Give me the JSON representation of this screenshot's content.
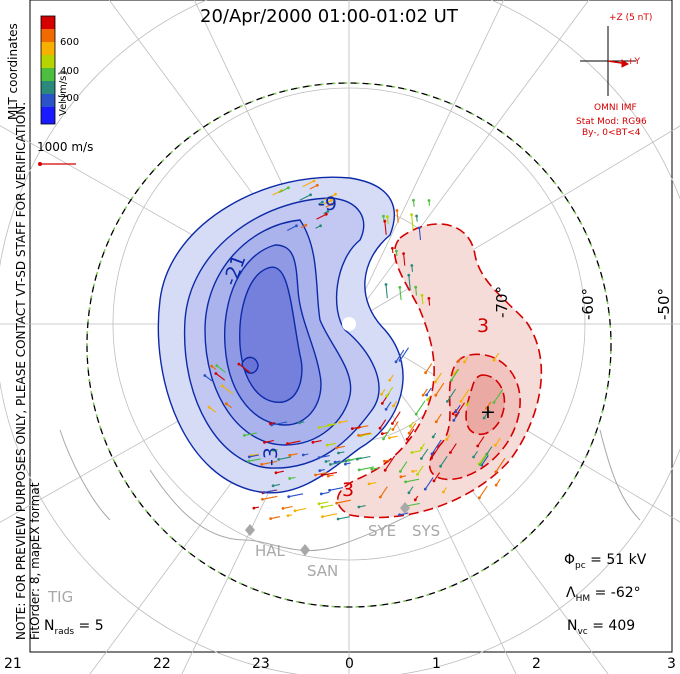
{
  "title": "20/Apr/2000 01:00-01:02 UT",
  "coord_label": "MLT coordinates",
  "note": "NOTE: FOR PREVIEW PURPOSES ONLY, PLEASE CONTACT VT-SD STAFF FOR VERIFICATION.",
  "fit_label": "FitOrder: 8,  mapEX format",
  "colorbar": {
    "label": "Vel [m/s]",
    "ticks": [
      "600",
      "400",
      "200"
    ],
    "colors": [
      "#d40000",
      "#f06a00",
      "#f7b000",
      "#b7d400",
      "#4cbf3f",
      "#2a8a7a",
      "#2b52c8",
      "#1a1aff"
    ]
  },
  "velocity_ref": "1000 m/s",
  "imf": {
    "scale": "+Z (5 nT)",
    "y_label": "+Y",
    "source": "OMNI IMF",
    "model": "Stat Mod: RG96",
    "conditions": "By-, 0<BT<4"
  },
  "mlt_ticks": [
    "21",
    "22",
    "23",
    "0",
    "1",
    "2",
    "3"
  ],
  "lat_labels": [
    "-70°",
    "-60°",
    "-50°"
  ],
  "contours": {
    "neg_labels": [
      "-9",
      "-21",
      "-3"
    ],
    "pos_labels": [
      "3",
      "3",
      "+"
    ],
    "colors": {
      "negative": "#0c2aa8",
      "positive": "#d40000"
    }
  },
  "stations": [
    "HAL",
    "SAN",
    "SYE",
    "SYS",
    "TIG"
  ],
  "stats": {
    "phi_pc": "51 kV",
    "lambda_hm": "-62°",
    "n_vc": "409",
    "n_rads": "5"
  }
}
